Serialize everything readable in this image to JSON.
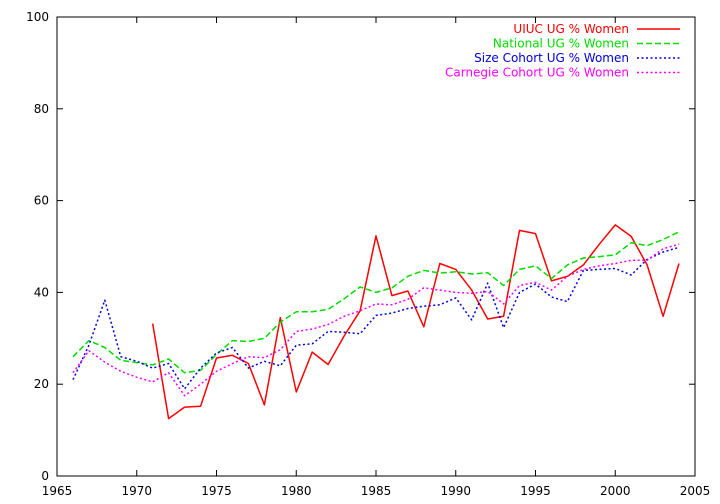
{
  "chart_data": {
    "type": "line",
    "title": "",
    "xlabel": "",
    "ylabel": "",
    "xlim": [
      1965,
      2005
    ],
    "ylim": [
      0,
      100
    ],
    "xticks": [
      1965,
      1970,
      1975,
      1980,
      1985,
      1990,
      1995,
      2000,
      2005
    ],
    "yticks": [
      0,
      20,
      40,
      60,
      80,
      100
    ],
    "xtick_labels": [
      "1965",
      "1970",
      "1975",
      "1980",
      "1985",
      "1990",
      "1995",
      "2000",
      "2005"
    ],
    "ytick_labels": [
      "0",
      "20",
      "40",
      "60",
      "80",
      "100"
    ],
    "grid": false,
    "legend_position": "top-right",
    "series": [
      {
        "name": "UIUC UG % Women",
        "color": "#ff0000",
        "dash": "solid",
        "x": [
          1971,
          1972,
          1973,
          1974,
          1975,
          1976,
          1977,
          1978,
          1979,
          1980,
          1981,
          1982,
          1983,
          1984,
          1985,
          1986,
          1987,
          1988,
          1989,
          1990,
          1991,
          1992,
          1993,
          1994,
          1995,
          1996,
          1997,
          1998,
          1999,
          2000,
          2001,
          2002,
          2003,
          2004
        ],
        "y": [
          33.2,
          12.5,
          15.0,
          15.2,
          25.7,
          26.3,
          24.5,
          15.5,
          34.5,
          18.3,
          27.0,
          24.3,
          30.5,
          36.0,
          52.3,
          39.3,
          40.3,
          32.5,
          46.3,
          45.0,
          40.5,
          34.2,
          34.8,
          53.5,
          52.8,
          42.5,
          43.5,
          46.0,
          50.5,
          54.7,
          52.2,
          46.0,
          34.8,
          46.3
        ]
      },
      {
        "name": "National UG % Women",
        "color": "#00dd00",
        "dash": "dashed",
        "x": [
          1966,
          1967,
          1968,
          1969,
          1970,
          1971,
          1972,
          1973,
          1974,
          1975,
          1976,
          1977,
          1978,
          1979,
          1980,
          1981,
          1982,
          1983,
          1984,
          1985,
          1986,
          1987,
          1988,
          1989,
          1990,
          1991,
          1992,
          1993,
          1994,
          1995,
          1996,
          1997,
          1998,
          1999,
          2000,
          2001,
          2002,
          2003,
          2004
        ],
        "y": [
          26.0,
          29.5,
          28.0,
          25.2,
          24.7,
          24.2,
          25.5,
          22.5,
          23.0,
          26.5,
          29.5,
          29.3,
          30.0,
          33.5,
          35.8,
          35.8,
          36.3,
          38.6,
          41.2,
          40.0,
          41.0,
          43.5,
          44.8,
          44.2,
          44.5,
          44.0,
          44.3,
          41.5,
          45.0,
          45.8,
          43.0,
          46.0,
          47.5,
          47.8,
          48.2,
          50.8,
          50.2,
          51.5,
          53.2
        ]
      },
      {
        "name": "Size Cohort UG % Women",
        "color": "#0000dd",
        "dash": "dotted",
        "x": [
          1966,
          1967,
          1968,
          1969,
          1970,
          1971,
          1972,
          1973,
          1974,
          1975,
          1976,
          1977,
          1978,
          1979,
          1980,
          1981,
          1982,
          1983,
          1984,
          1985,
          1986,
          1987,
          1988,
          1989,
          1990,
          1991,
          1992,
          1993,
          1994,
          1995,
          1996,
          1997,
          1998,
          1999,
          2000,
          2001,
          2002,
          2003,
          2004
        ],
        "y": [
          21.0,
          28.5,
          38.3,
          26.0,
          25.0,
          23.5,
          24.5,
          19.0,
          23.5,
          26.8,
          28.0,
          23.5,
          25.0,
          24.0,
          28.5,
          28.8,
          31.5,
          31.3,
          31.0,
          35.0,
          35.5,
          36.5,
          37.0,
          37.3,
          38.8,
          34.0,
          42.0,
          32.3,
          40.0,
          41.8,
          39.0,
          38.0,
          44.8,
          45.0,
          45.2,
          43.8,
          47.2,
          48.8,
          49.8
        ]
      },
      {
        "name": "Carnegie Cohort UG % Women",
        "color": "#ff00ff",
        "dash": "dotted",
        "x": [
          1966,
          1967,
          1968,
          1969,
          1970,
          1971,
          1972,
          1973,
          1974,
          1975,
          1976,
          1977,
          1978,
          1979,
          1980,
          1981,
          1982,
          1983,
          1984,
          1985,
          1986,
          1987,
          1988,
          1989,
          1990,
          1991,
          1992,
          1993,
          1994,
          1995,
          1996,
          1997,
          1998,
          1999,
          2000,
          2001,
          2002,
          2003,
          2004
        ],
        "y": [
          22.5,
          27.3,
          24.8,
          22.8,
          21.5,
          20.5,
          22.5,
          17.5,
          20.0,
          22.8,
          24.5,
          26.0,
          25.8,
          27.5,
          31.5,
          32.0,
          33.0,
          34.8,
          36.0,
          37.5,
          37.3,
          38.5,
          41.0,
          40.5,
          40.0,
          39.8,
          40.2,
          37.5,
          41.5,
          42.2,
          40.5,
          43.5,
          45.0,
          45.8,
          46.3,
          47.0,
          47.0,
          49.5,
          50.5
        ]
      }
    ]
  }
}
